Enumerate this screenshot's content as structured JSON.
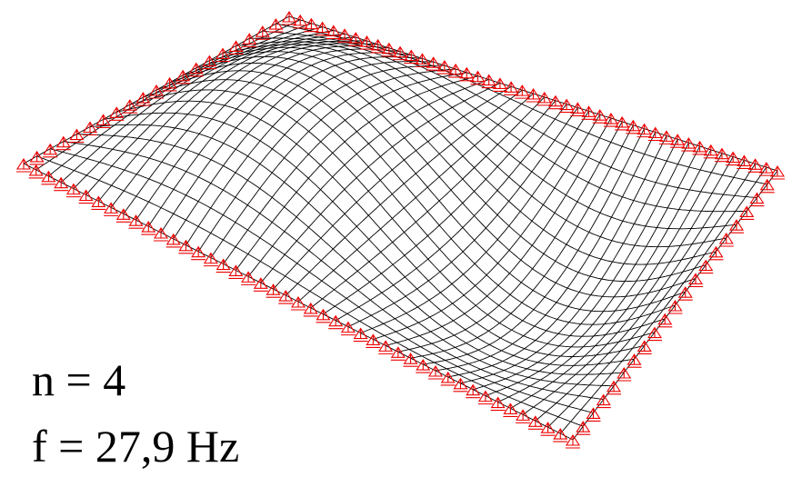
{
  "labels": {
    "mode": "n = 4",
    "frequency": "f = 27,9 Hz"
  }
}
